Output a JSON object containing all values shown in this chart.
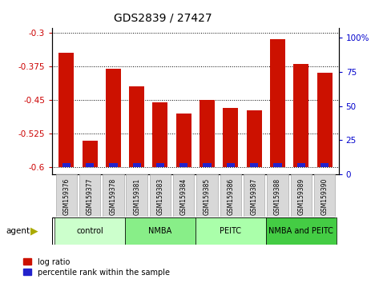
{
  "title": "GDS2839 / 27427",
  "samples": [
    "GSM159376",
    "GSM159377",
    "GSM159378",
    "GSM159381",
    "GSM159383",
    "GSM159384",
    "GSM159385",
    "GSM159386",
    "GSM159387",
    "GSM159388",
    "GSM159389",
    "GSM159390"
  ],
  "log_ratio": [
    -0.345,
    -0.54,
    -0.38,
    -0.42,
    -0.455,
    -0.48,
    -0.45,
    -0.468,
    -0.473,
    -0.315,
    -0.37,
    -0.39
  ],
  "percentile_rank": [
    5,
    5,
    5,
    5,
    5,
    5,
    5,
    5,
    5,
    5,
    5,
    5
  ],
  "bar_bottom": -0.6,
  "ylim_left": [
    -0.615,
    -0.29
  ],
  "ylim_right": [
    0,
    107
  ],
  "yticks_left": [
    -0.6,
    -0.525,
    -0.45,
    -0.375,
    -0.3
  ],
  "yticks_right": [
    0,
    25,
    50,
    75,
    100
  ],
  "ytick_labels_left": [
    "-0.6",
    "-0.525",
    "-0.45",
    "-0.375",
    "-0.3"
  ],
  "ytick_labels_right": [
    "0",
    "25",
    "50",
    "75",
    "100%"
  ],
  "groups": [
    {
      "label": "control",
      "start": 0,
      "end": 3,
      "color": "#ccffcc"
    },
    {
      "label": "NMBA",
      "start": 3,
      "end": 6,
      "color": "#88ee88"
    },
    {
      "label": "PEITC",
      "start": 6,
      "end": 9,
      "color": "#aaffaa"
    },
    {
      "label": "NMBA and PEITC",
      "start": 9,
      "end": 12,
      "color": "#44cc44"
    }
  ],
  "bar_color_red": "#cc1100",
  "bar_color_blue": "#2222cc",
  "agent_label": "agent",
  "legend_red": "log ratio",
  "legend_blue": "percentile rank within the sample",
  "bar_width": 0.65,
  "blue_bar_width": 0.35,
  "background_color": "#ffffff",
  "plot_bg": "#ffffff",
  "tick_label_color_left": "#cc0000",
  "tick_label_color_right": "#0000cc"
}
